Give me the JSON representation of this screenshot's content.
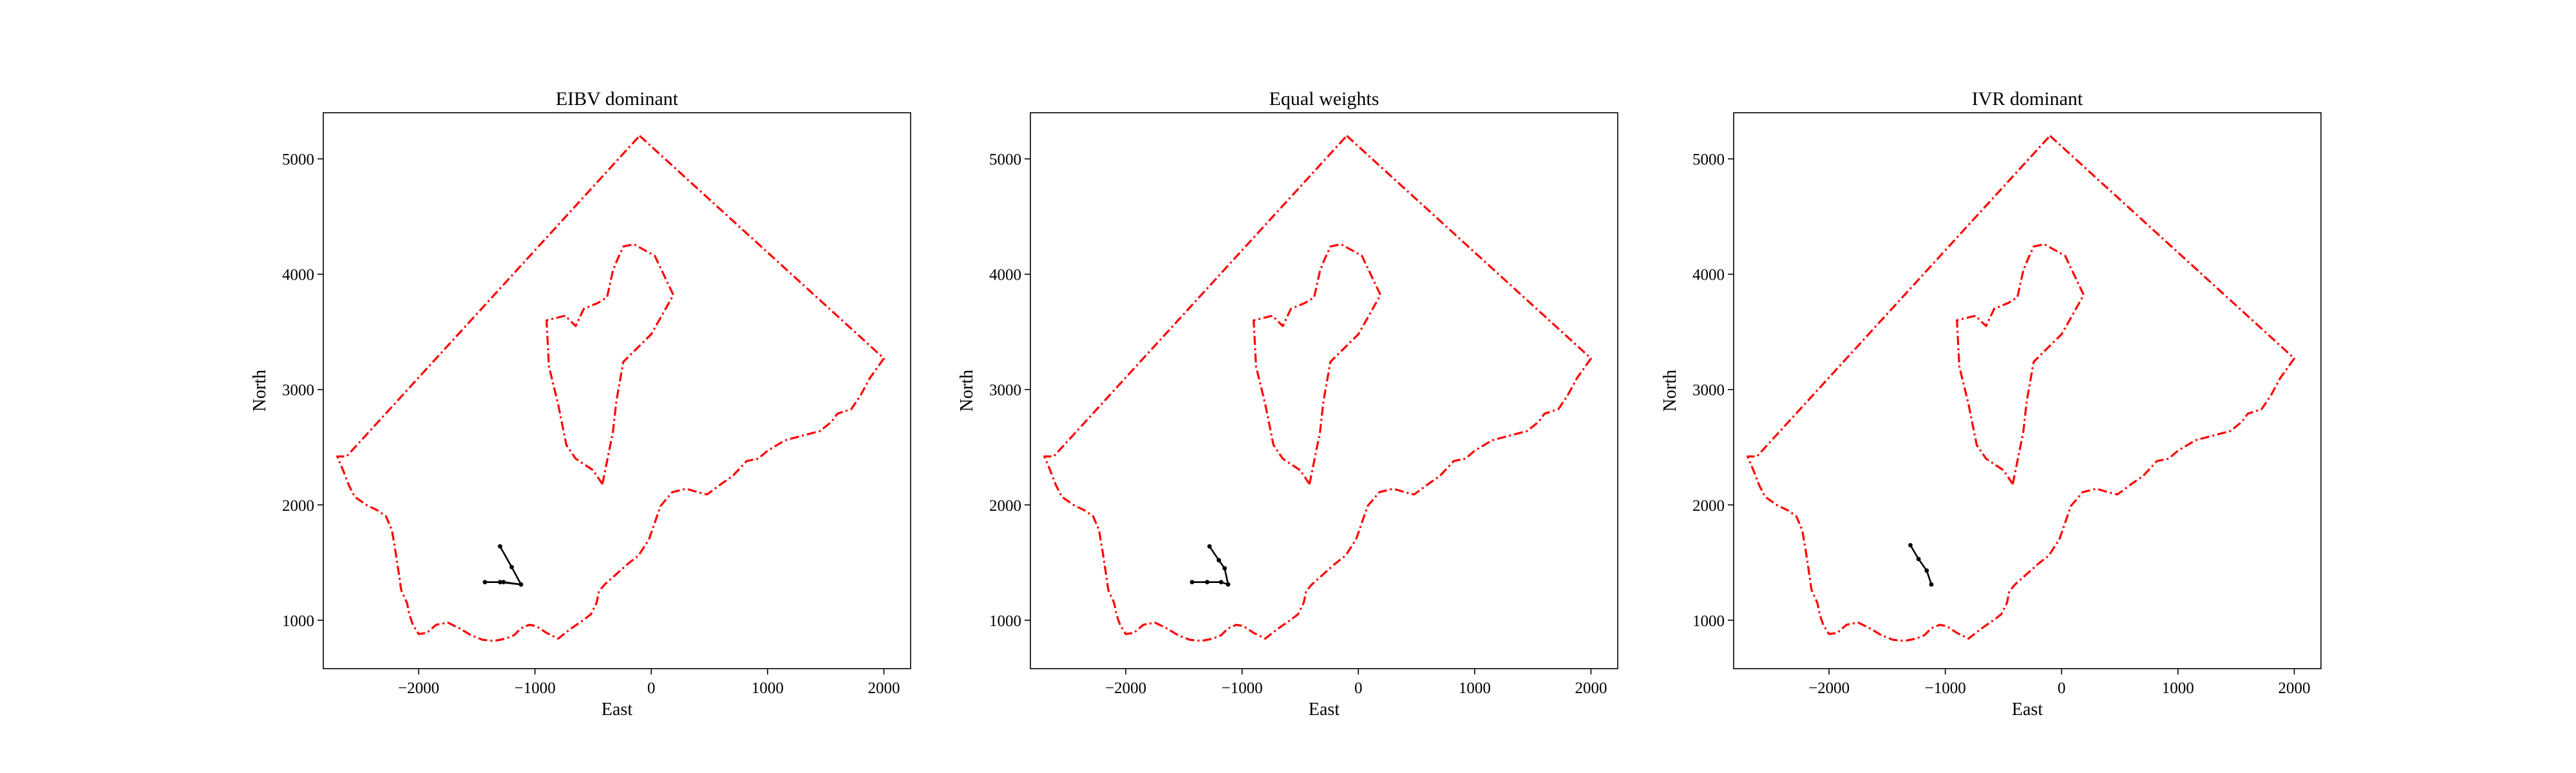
{
  "colors": {
    "boundary": "#ff0000",
    "trajectory": "#000000",
    "axes": "#000000"
  },
  "chart_data": [
    {
      "type": "line",
      "title": "EIBV dominant",
      "xlabel": "East",
      "ylabel": "North",
      "xlim": [
        -2820,
        2230
      ],
      "ylim": [
        580,
        5400
      ],
      "xticks": [
        -2000,
        -1000,
        0,
        1000,
        2000
      ],
      "xtick_labels": [
        "−2000",
        "−1000",
        "0",
        "1000",
        "2000"
      ],
      "yticks": [
        1000,
        2000,
        3000,
        4000,
        5000
      ],
      "ytick_labels": [
        "1000",
        "2000",
        "3000",
        "4000",
        "5000"
      ],
      "grid": false,
      "series": [
        {
          "role": "boundary-outer",
          "style": "dash-dot",
          "x": [
            -100,
            2000,
            1880,
            1800,
            1720,
            1600,
            1550,
            1450,
            1300,
            1150,
            1000,
            920,
            820,
            700,
            600,
            480,
            400,
            300,
            180,
            80,
            -20,
            -110,
            -200,
            -300,
            -400,
            -450,
            -470,
            -520,
            -600,
            -700,
            -800,
            -900,
            -990,
            -1050,
            -1120,
            -1180,
            -1250,
            -1350,
            -1450,
            -1550,
            -1650,
            -1750,
            -1850,
            -1930,
            -2000,
            -2050,
            -2080,
            -2100,
            -2150,
            -2170,
            -2200,
            -2230,
            -2280,
            -2350,
            -2450,
            -2550,
            -2600,
            -2650,
            -2700,
            -2620,
            -100
          ],
          "y": [
            5200,
            3270,
            3100,
            2950,
            2830,
            2790,
            2720,
            2640,
            2600,
            2560,
            2470,
            2400,
            2380,
            2250,
            2180,
            2090,
            2110,
            2140,
            2110,
            1990,
            1700,
            1560,
            1490,
            1400,
            1310,
            1250,
            1150,
            1050,
            990,
            920,
            840,
            890,
            950,
            960,
            930,
            870,
            840,
            820,
            830,
            870,
            930,
            980,
            960,
            890,
            880,
            960,
            1050,
            1150,
            1260,
            1400,
            1600,
            1780,
            1900,
            1950,
            2000,
            2070,
            2170,
            2300,
            2420,
            2420,
            5200
          ]
        },
        {
          "role": "boundary-inner",
          "style": "dash-dot",
          "x": [
            -420,
            -330,
            -300,
            -240,
            0,
            190,
            30,
            -150,
            -240,
            -290,
            -330,
            -380,
            -460,
            -580,
            -650,
            -740,
            -900,
            -880,
            -800,
            -730,
            -650,
            -500,
            -420
          ],
          "y": [
            2180,
            2630,
            2900,
            3240,
            3480,
            3820,
            4160,
            4260,
            4240,
            4130,
            4030,
            3800,
            3750,
            3700,
            3550,
            3640,
            3600,
            3200,
            2870,
            2520,
            2400,
            2300,
            2180
          ]
        },
        {
          "role": "trajectory",
          "x": [
            -1120,
            -1270,
            -1430,
            -1300,
            -1120,
            -1200,
            -1300
          ],
          "y": [
            1310,
            1330,
            1330,
            1330,
            1310,
            1460,
            1640
          ]
        }
      ]
    },
    {
      "type": "line",
      "title": "Equal weights",
      "xlabel": "East",
      "ylabel": "North",
      "xlim": [
        -2820,
        2230
      ],
      "ylim": [
        580,
        5400
      ],
      "xticks": [
        -2000,
        -1000,
        0,
        1000,
        2000
      ],
      "xtick_labels": [
        "−2000",
        "−1000",
        "0",
        "1000",
        "2000"
      ],
      "yticks": [
        1000,
        2000,
        3000,
        4000,
        5000
      ],
      "ytick_labels": [
        "1000",
        "2000",
        "3000",
        "4000",
        "5000"
      ],
      "grid": false,
      "series": [
        {
          "role": "boundary-outer",
          "style": "dash-dot",
          "x": [
            -100,
            2000,
            1880,
            1800,
            1720,
            1600,
            1550,
            1450,
            1300,
            1150,
            1000,
            920,
            820,
            700,
            600,
            480,
            400,
            300,
            180,
            80,
            -20,
            -110,
            -200,
            -300,
            -400,
            -450,
            -470,
            -520,
            -600,
            -700,
            -800,
            -900,
            -990,
            -1050,
            -1120,
            -1180,
            -1250,
            -1350,
            -1450,
            -1550,
            -1650,
            -1750,
            -1850,
            -1930,
            -2000,
            -2050,
            -2080,
            -2100,
            -2150,
            -2170,
            -2200,
            -2230,
            -2280,
            -2350,
            -2450,
            -2550,
            -2600,
            -2650,
            -2700,
            -2620,
            -100
          ],
          "y": [
            5200,
            3270,
            3100,
            2950,
            2830,
            2790,
            2720,
            2640,
            2600,
            2560,
            2470,
            2400,
            2380,
            2250,
            2180,
            2090,
            2110,
            2140,
            2110,
            1990,
            1700,
            1560,
            1490,
            1400,
            1310,
            1250,
            1150,
            1050,
            990,
            920,
            840,
            890,
            950,
            960,
            930,
            870,
            840,
            820,
            830,
            870,
            930,
            980,
            960,
            890,
            880,
            960,
            1050,
            1150,
            1260,
            1400,
            1600,
            1780,
            1900,
            1950,
            2000,
            2070,
            2170,
            2300,
            2420,
            2420,
            5200
          ]
        },
        {
          "role": "boundary-inner",
          "style": "dash-dot",
          "x": [
            -420,
            -330,
            -300,
            -240,
            0,
            190,
            30,
            -150,
            -240,
            -290,
            -330,
            -380,
            -460,
            -580,
            -650,
            -740,
            -900,
            -880,
            -800,
            -730,
            -650,
            -500,
            -420
          ],
          "y": [
            2180,
            2630,
            2900,
            3240,
            3480,
            3820,
            4160,
            4260,
            4240,
            4130,
            4030,
            3800,
            3750,
            3700,
            3550,
            3640,
            3600,
            3200,
            2870,
            2520,
            2400,
            2300,
            2180
          ]
        },
        {
          "role": "trajectory",
          "x": [
            -1430,
            -1300,
            -1180,
            -1120,
            -1150,
            -1200,
            -1280
          ],
          "y": [
            1330,
            1330,
            1330,
            1310,
            1450,
            1520,
            1640
          ]
        }
      ]
    },
    {
      "type": "line",
      "title": "IVR dominant",
      "xlabel": "East",
      "ylabel": "North",
      "xlim": [
        -2820,
        2230
      ],
      "ylim": [
        580,
        5400
      ],
      "xticks": [
        -2000,
        -1000,
        0,
        1000,
        2000
      ],
      "xtick_labels": [
        "−2000",
        "−1000",
        "0",
        "1000",
        "2000"
      ],
      "yticks": [
        1000,
        2000,
        3000,
        4000,
        5000
      ],
      "ytick_labels": [
        "1000",
        "2000",
        "3000",
        "4000",
        "5000"
      ],
      "grid": false,
      "series": [
        {
          "role": "boundary-outer",
          "style": "dash-dot",
          "x": [
            -100,
            2000,
            1880,
            1800,
            1720,
            1600,
            1550,
            1450,
            1300,
            1150,
            1000,
            920,
            820,
            700,
            600,
            480,
            400,
            300,
            180,
            80,
            -20,
            -110,
            -200,
            -300,
            -400,
            -450,
            -470,
            -520,
            -600,
            -700,
            -800,
            -900,
            -990,
            -1050,
            -1120,
            -1180,
            -1250,
            -1350,
            -1450,
            -1550,
            -1650,
            -1750,
            -1850,
            -1930,
            -2000,
            -2050,
            -2080,
            -2100,
            -2150,
            -2170,
            -2200,
            -2230,
            -2280,
            -2350,
            -2450,
            -2550,
            -2600,
            -2650,
            -2700,
            -2620,
            -100
          ],
          "y": [
            5200,
            3270,
            3100,
            2950,
            2830,
            2790,
            2720,
            2640,
            2600,
            2560,
            2470,
            2400,
            2380,
            2250,
            2180,
            2090,
            2110,
            2140,
            2110,
            1990,
            1700,
            1560,
            1490,
            1400,
            1310,
            1250,
            1150,
            1050,
            990,
            920,
            840,
            890,
            950,
            960,
            930,
            870,
            840,
            820,
            830,
            870,
            930,
            980,
            960,
            890,
            880,
            960,
            1050,
            1150,
            1260,
            1400,
            1600,
            1780,
            1900,
            1950,
            2000,
            2070,
            2170,
            2300,
            2420,
            2420,
            5200
          ]
        },
        {
          "role": "boundary-inner",
          "style": "dash-dot",
          "x": [
            -420,
            -330,
            -300,
            -240,
            0,
            190,
            30,
            -150,
            -240,
            -290,
            -330,
            -380,
            -460,
            -580,
            -650,
            -740,
            -900,
            -880,
            -800,
            -730,
            -650,
            -500,
            -420
          ],
          "y": [
            2180,
            2630,
            2900,
            3240,
            3480,
            3820,
            4160,
            4260,
            4240,
            4130,
            4030,
            3800,
            3750,
            3700,
            3550,
            3640,
            3600,
            3200,
            2870,
            2520,
            2400,
            2300,
            2180
          ]
        },
        {
          "role": "trajectory",
          "x": [
            -1300,
            -1230,
            -1160,
            -1120
          ],
          "y": [
            1650,
            1530,
            1430,
            1310
          ]
        }
      ]
    }
  ]
}
